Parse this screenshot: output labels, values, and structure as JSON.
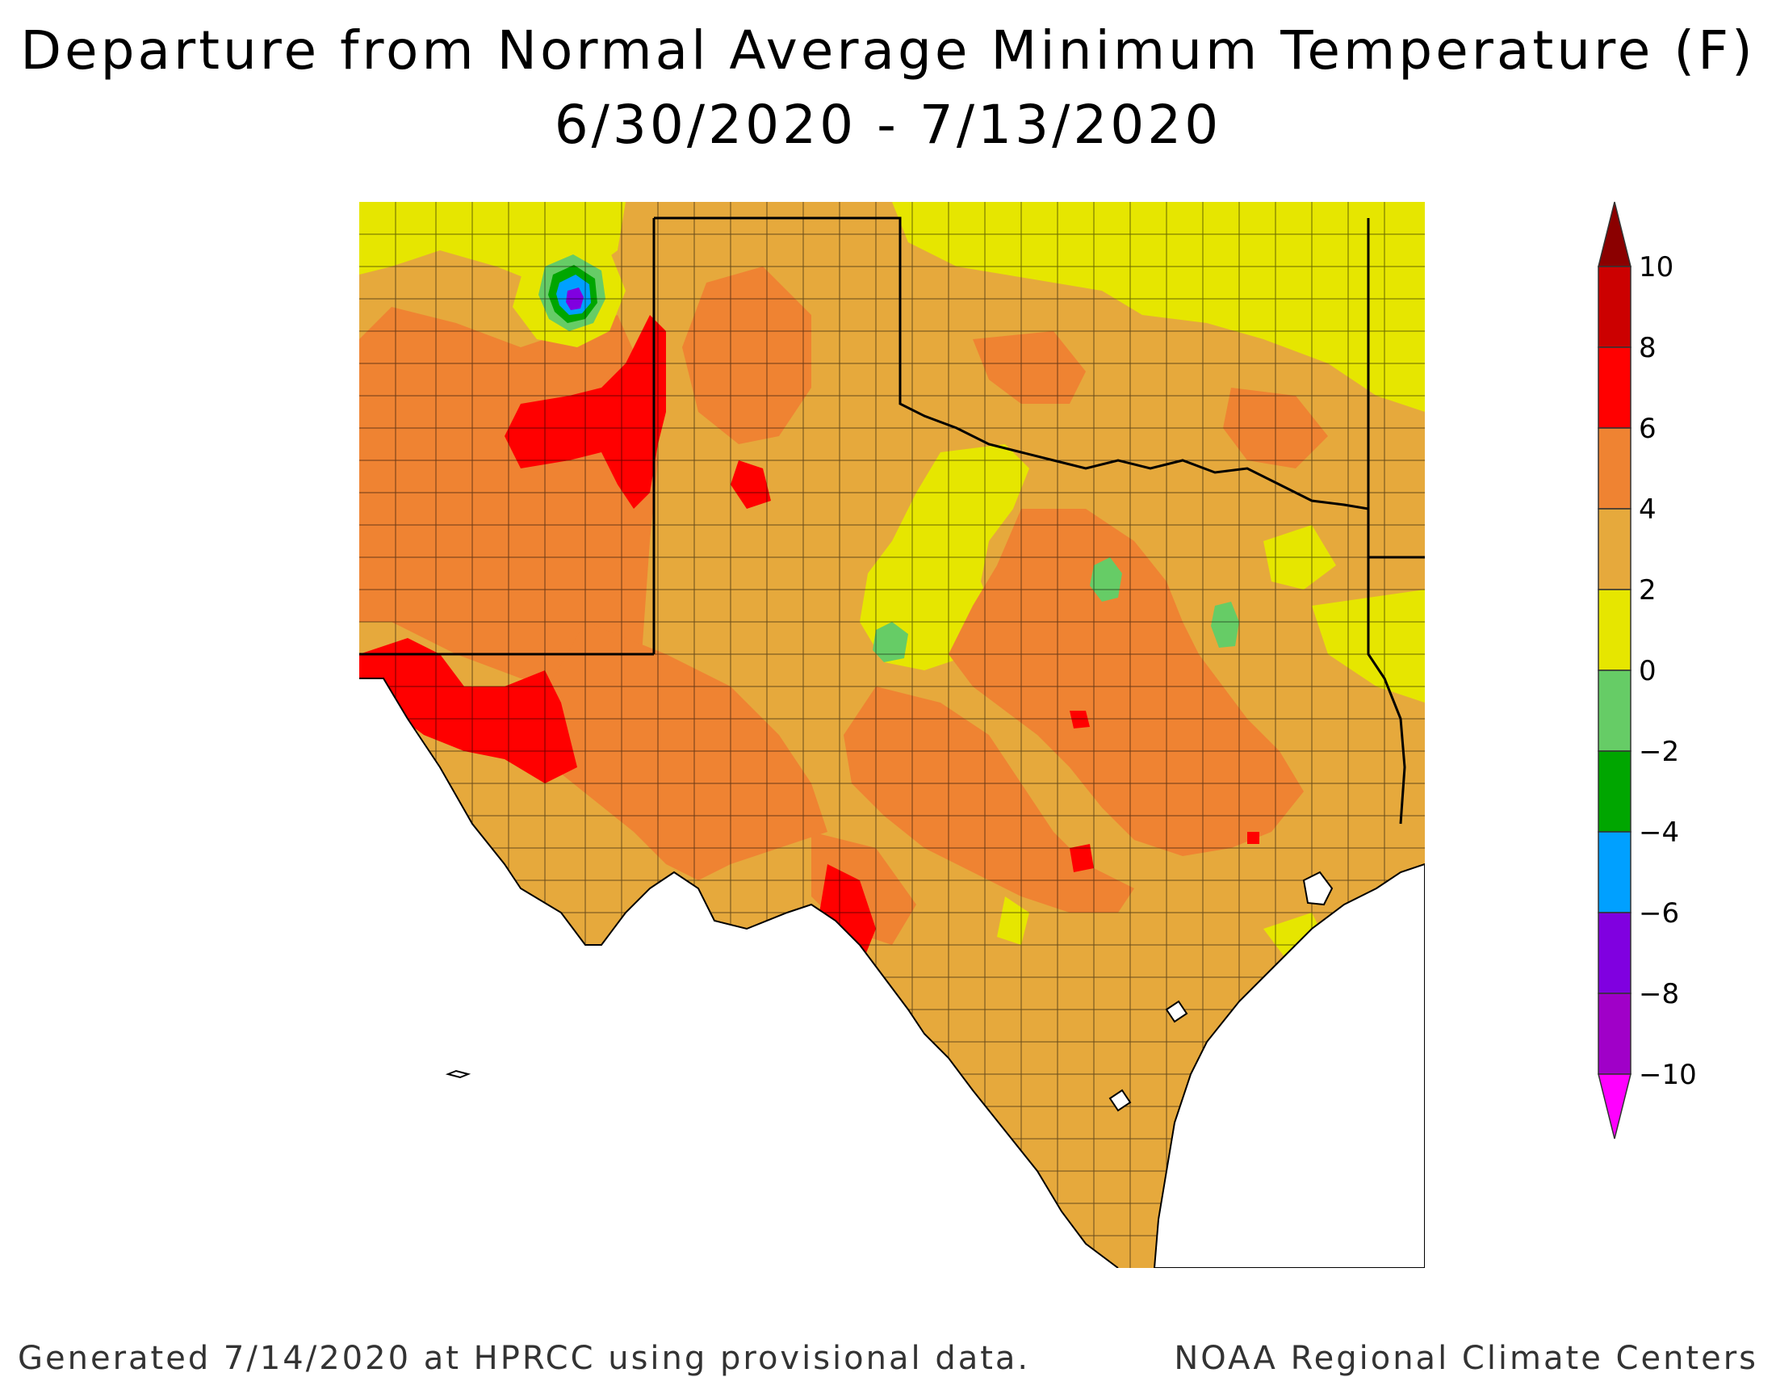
{
  "title": {
    "line1": "Departure from Normal Average Minimum Temperature (F)",
    "line2": "6/30/2020 - 7/13/2020"
  },
  "footer": {
    "left": "Generated 7/14/2020 at HPRCC using provisional data.",
    "right": "NOAA Regional Climate Centers"
  },
  "legend": {
    "ticks": [
      "10",
      "8",
      "6",
      "4",
      "2",
      "0",
      "−2",
      "−4",
      "−6",
      "−8",
      "−10"
    ],
    "colors": [
      "#8b0000",
      "#cc0000",
      "#ff0000",
      "#ef8332",
      "#e6a93c",
      "#e6e600",
      "#66cc66",
      "#00a600",
      "#00a0ff",
      "#8000e0",
      "#a000c8",
      "#ff00ff"
    ]
  },
  "map": {
    "colors": {
      "background": "#e6a93c",
      "warm": "#ef8332",
      "hot": "#ff0000",
      "normal": "#e6e600",
      "cool": "#66cc66",
      "cooler": "#00a600",
      "cold": "#00a0ff",
      "coldest": "#8000e0",
      "water": "#ffffff",
      "border": "#000000"
    }
  }
}
